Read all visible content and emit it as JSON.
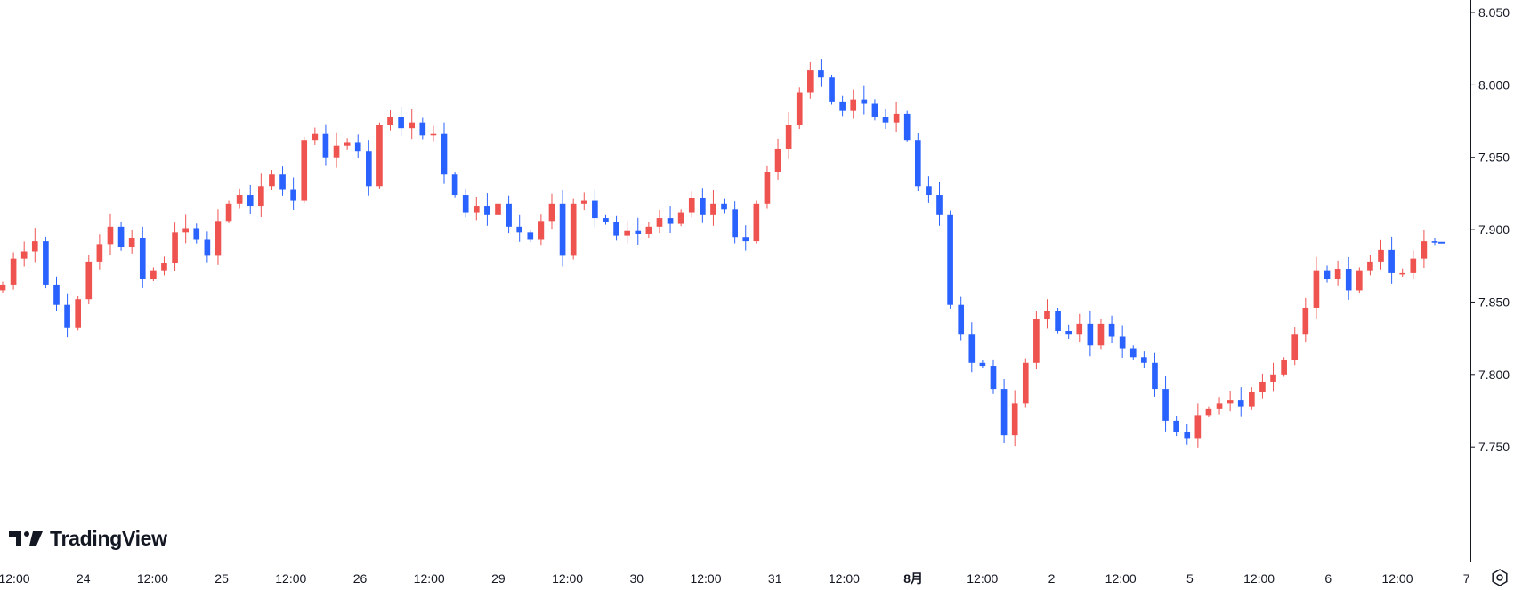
{
  "watermark": {
    "text": "TradingView",
    "icon": "tradingview-logo-icon"
  },
  "settings": {
    "icon": "settings-icon"
  },
  "colors": {
    "up": "#ef5350",
    "down": "#2962ff",
    "axis": "#131722",
    "background": "#ffffff"
  },
  "chart_data": {
    "type": "candlestick",
    "title": "",
    "xlabel": "",
    "ylabel": "",
    "grid": false,
    "ylim": [
      7.72,
      8.05
    ],
    "y_ticks": [
      "8.050",
      "8.000",
      "7.950",
      "7.900",
      "7.850",
      "7.800",
      "7.750"
    ],
    "last_price": 7.891,
    "x_ticks": [
      {
        "label": "12:00",
        "bold": false
      },
      {
        "label": "24",
        "bold": false
      },
      {
        "label": "12:00",
        "bold": false
      },
      {
        "label": "25",
        "bold": false
      },
      {
        "label": "12:00",
        "bold": false
      },
      {
        "label": "26",
        "bold": false
      },
      {
        "label": "12:00",
        "bold": false
      },
      {
        "label": "29",
        "bold": false
      },
      {
        "label": "12:00",
        "bold": false
      },
      {
        "label": "30",
        "bold": false
      },
      {
        "label": "12:00",
        "bold": false
      },
      {
        "label": "31",
        "bold": false
      },
      {
        "label": "12:00",
        "bold": false
      },
      {
        "label": "8月",
        "bold": true
      },
      {
        "label": "12:00",
        "bold": false
      },
      {
        "label": "2",
        "bold": false
      },
      {
        "label": "12:00",
        "bold": false
      },
      {
        "label": "5",
        "bold": false
      },
      {
        "label": "12:00",
        "bold": false
      },
      {
        "label": "6",
        "bold": false
      },
      {
        "label": "12:00",
        "bold": false
      },
      {
        "label": "7",
        "bold": false
      }
    ],
    "close_path": [
      7.862,
      7.88,
      7.885,
      7.892,
      7.862,
      7.848,
      7.832,
      7.852,
      7.878,
      7.89,
      7.902,
      7.888,
      7.894,
      7.866,
      7.872,
      7.877,
      7.898,
      7.901,
      7.893,
      7.882,
      7.906,
      7.918,
      7.924,
      7.916,
      7.93,
      7.938,
      7.928,
      7.92,
      7.962,
      7.966,
      7.95,
      7.958,
      7.96,
      7.954,
      7.93,
      7.972,
      7.978,
      7.97,
      7.974,
      7.965,
      7.966,
      7.938,
      7.924,
      7.912,
      7.916,
      7.91,
      7.918,
      7.902,
      7.898,
      7.893,
      7.906,
      7.918,
      7.882,
      7.918,
      7.92,
      7.908,
      7.905,
      7.896,
      7.899,
      7.897,
      7.902,
      7.908,
      7.904,
      7.912,
      7.922,
      7.91,
      7.918,
      7.914,
      7.895,
      7.892,
      7.918,
      7.94,
      7.956,
      7.972,
      7.995,
      8.01,
      8.005,
      7.988,
      7.982,
      7.99,
      7.987,
      7.978,
      7.974,
      7.98,
      7.962,
      7.93,
      7.924,
      7.91,
      7.848,
      7.828,
      7.808,
      7.806,
      7.79,
      7.758,
      7.78,
      7.808,
      7.838,
      7.844,
      7.83,
      7.828,
      7.835,
      7.82,
      7.835,
      7.826,
      7.818,
      7.812,
      7.808,
      7.79,
      7.768,
      7.76,
      7.756,
      7.772,
      7.776,
      7.78,
      7.782,
      7.778,
      7.788,
      7.795,
      7.8,
      7.81,
      7.828,
      7.846,
      7.872,
      7.866,
      7.873,
      7.858,
      7.872,
      7.878,
      7.886,
      7.87,
      7.87,
      7.88,
      7.892,
      7.891
    ]
  }
}
